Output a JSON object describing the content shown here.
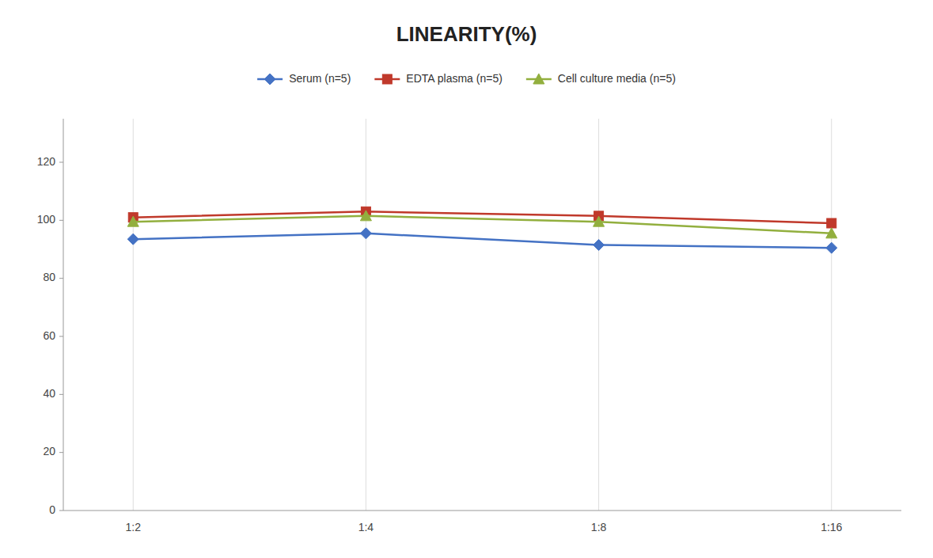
{
  "chart_data": {
    "type": "line",
    "title": "LINEARITY(%)",
    "categories": [
      "1:2",
      "1:4",
      "1:8",
      "1:16"
    ],
    "series": [
      {
        "name": "Serum (n=5)",
        "color": "#4472C4",
        "marker": "diamond",
        "values": [
          93.5,
          95.5,
          91.5,
          90.5
        ]
      },
      {
        "name": "EDTA plasma (n=5)",
        "color": "#C0392B",
        "marker": "square",
        "values": [
          101.0,
          103.0,
          101.5,
          99.0
        ]
      },
      {
        "name": "Cell culture media (n=5)",
        "color": "#92AF3E",
        "marker": "triangle",
        "values": [
          99.5,
          101.5,
          99.5,
          95.5
        ]
      }
    ],
    "ylim": [
      0,
      135
    ],
    "yticks": [
      0,
      20,
      40,
      60,
      80,
      100,
      120
    ],
    "grid": "x",
    "legend": "top"
  }
}
